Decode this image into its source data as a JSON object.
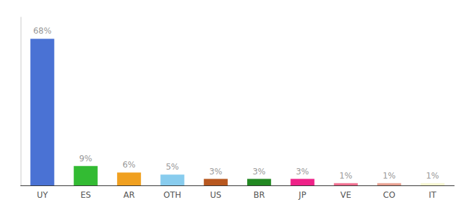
{
  "chart_data": {
    "type": "bar",
    "categories": [
      "UY",
      "ES",
      "AR",
      "OTH",
      "US",
      "BR",
      "JP",
      "VE",
      "CO",
      "IT"
    ],
    "values": [
      68,
      9,
      6,
      5,
      3,
      3,
      3,
      1,
      1,
      1
    ],
    "value_labels": [
      "68%",
      "9%",
      "6%",
      "5%",
      "3%",
      "3%",
      "3%",
      "1%",
      "1%",
      "1%"
    ],
    "colors": [
      "#4a72d4",
      "#33bb33",
      "#f0a020",
      "#88ccee",
      "#b85820",
      "#228822",
      "#ee2288",
      "#f07090",
      "#e8a090",
      "#f5f5d0"
    ],
    "ylim": [
      0,
      78
    ],
    "data_labels": true,
    "tick_labels": "x",
    "grid": false
  }
}
